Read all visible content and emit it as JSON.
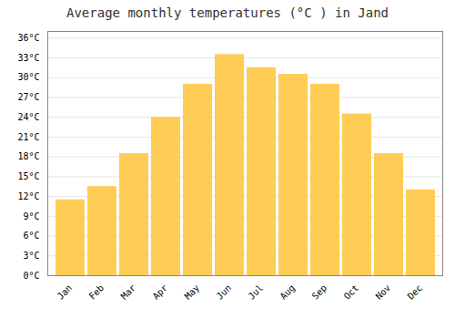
{
  "chart_data": {
    "type": "bar",
    "title": "Average monthly temperatures (°C ) in Jand",
    "categories": [
      "Jan",
      "Feb",
      "Mar",
      "Apr",
      "May",
      "Jun",
      "Jul",
      "Aug",
      "Sep",
      "Oct",
      "Nov",
      "Dec"
    ],
    "values": [
      11.5,
      13.5,
      18.5,
      24.0,
      29.0,
      33.5,
      31.5,
      30.5,
      29.0,
      24.5,
      18.5,
      13.0
    ],
    "color": "#FFCC55",
    "ylim": [
      0,
      37
    ],
    "yticks": [
      {
        "value": 0,
        "label": "0°C"
      },
      {
        "value": 3,
        "label": "3°C"
      },
      {
        "value": 6,
        "label": "6°C"
      },
      {
        "value": 9,
        "label": "9°C"
      },
      {
        "value": 12,
        "label": "12°C"
      },
      {
        "value": 15,
        "label": "15°C"
      },
      {
        "value": 18,
        "label": "18°C"
      },
      {
        "value": 21,
        "label": "21°C"
      },
      {
        "value": 24,
        "label": "24°C"
      },
      {
        "value": 27,
        "label": "27°C"
      },
      {
        "value": 30,
        "label": "30°C"
      },
      {
        "value": 33,
        "label": "33°C"
      },
      {
        "value": 36,
        "label": "36°C"
      }
    ],
    "grid": true
  }
}
